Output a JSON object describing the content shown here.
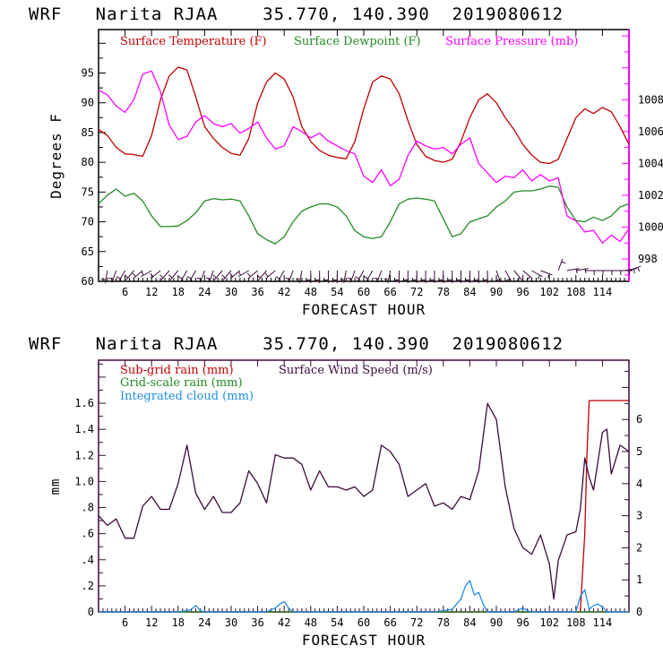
{
  "chart_data": [
    {
      "type": "line",
      "title": "WRF   Narita RJAA    35.770, 140.390  2019080612",
      "xlabel": "FORECAST HOUR",
      "ylabel": "Degrees F",
      "y2label": "",
      "xlim": [
        0,
        120
      ],
      "ylim": [
        60,
        102.3
      ],
      "y2lim": [
        996.6,
        1012.4
      ],
      "x_ticks": [
        6,
        12,
        18,
        24,
        30,
        36,
        42,
        48,
        54,
        60,
        66,
        72,
        78,
        84,
        90,
        96,
        102,
        108,
        114
      ],
      "x_tick_labels": [
        "6",
        "12",
        "18",
        "24",
        "30",
        "36",
        "42",
        "48",
        "54",
        "60",
        "66",
        "72",
        "78",
        "84",
        "90",
        "96",
        "102",
        "108",
        "114"
      ],
      "y_ticks": [
        60,
        65,
        70,
        75,
        80,
        85,
        90,
        95
      ],
      "y_tick_labels": [
        "60",
        "65",
        "70",
        "75",
        "80",
        "85",
        "90",
        "95"
      ],
      "y2_ticks": [
        998,
        1000,
        1002,
        1004,
        1006,
        1008
      ],
      "y2_tick_labels": [
        "998",
        "1000",
        "1002",
        "1004",
        "1006",
        "1008"
      ],
      "grid": false,
      "legend_position": "top-left",
      "series": [
        {
          "name": "Surface Temperature (F)",
          "color": "#c00000",
          "axis": "left",
          "x": [
            0,
            2,
            4,
            6,
            8,
            10,
            12,
            14,
            16,
            18,
            20,
            22,
            24,
            26,
            28,
            30,
            32,
            34,
            36,
            38,
            40,
            42,
            44,
            46,
            48,
            50,
            52,
            54,
            56,
            58,
            60,
            62,
            64,
            66,
            68,
            70,
            72,
            74,
            76,
            78,
            80,
            82,
            84,
            86,
            88,
            90,
            92,
            94,
            96,
            98,
            100,
            102,
            104,
            106,
            108,
            110,
            112,
            114,
            116,
            118,
            120
          ],
          "y": [
            85.5,
            84.5,
            82.5,
            81.4,
            81.3,
            81.0,
            84.5,
            90.5,
            94.5,
            96.0,
            95.5,
            91.0,
            86.0,
            84.0,
            82.5,
            81.5,
            81.2,
            84.0,
            90.0,
            93.5,
            95.0,
            94.0,
            91.0,
            86.0,
            83.5,
            82.0,
            81.2,
            80.8,
            80.6,
            83.5,
            89.0,
            93.5,
            94.5,
            94.0,
            91.5,
            87.0,
            83.0,
            81.0,
            80.3,
            80.0,
            80.5,
            83.5,
            87.5,
            90.5,
            91.5,
            90.0,
            87.5,
            85.5,
            83.0,
            81.2,
            80.0,
            79.8,
            80.5,
            84.0,
            87.5,
            89.0,
            88.2,
            89.2,
            88.5,
            86.0,
            83.0
          ]
        },
        {
          "name": "Surface Dewpoint (F)",
          "color": "#228b22",
          "axis": "left",
          "x": [
            0,
            2,
            4,
            6,
            8,
            10,
            12,
            14,
            16,
            18,
            20,
            22,
            24,
            26,
            28,
            30,
            32,
            34,
            36,
            38,
            40,
            42,
            44,
            46,
            48,
            50,
            52,
            54,
            56,
            58,
            60,
            62,
            64,
            66,
            68,
            70,
            72,
            74,
            76,
            78,
            80,
            82,
            84,
            86,
            88,
            90,
            92,
            94,
            96,
            98,
            100,
            102,
            104,
            106,
            108,
            110,
            112,
            114,
            116,
            118,
            120
          ],
          "y": [
            73.0,
            74.5,
            75.5,
            74.3,
            74.8,
            73.5,
            71.0,
            69.2,
            69.2,
            69.3,
            70.2,
            71.5,
            73.5,
            73.9,
            73.7,
            73.8,
            73.5,
            71.0,
            68.0,
            67.0,
            66.3,
            67.5,
            70.0,
            71.8,
            72.5,
            73.0,
            73.0,
            72.5,
            71.0,
            68.5,
            67.5,
            67.2,
            67.5,
            70.0,
            73.0,
            73.8,
            74.0,
            73.8,
            73.5,
            70.5,
            67.5,
            68.0,
            70.0,
            70.5,
            71.0,
            72.5,
            73.5,
            75.0,
            75.2,
            75.2,
            75.5,
            76.0,
            75.8,
            72.5,
            70.2,
            70.0,
            70.8,
            70.2,
            71.0,
            72.5,
            73.0
          ]
        },
        {
          "name": "Surface Pressure (mb)",
          "color": "#ff00ff",
          "axis": "right",
          "x": [
            0,
            2,
            4,
            6,
            8,
            10,
            12,
            14,
            16,
            18,
            20,
            22,
            24,
            26,
            28,
            30,
            32,
            34,
            36,
            38,
            40,
            42,
            44,
            46,
            48,
            50,
            52,
            54,
            56,
            58,
            60,
            62,
            64,
            66,
            68,
            70,
            72,
            74,
            76,
            78,
            80,
            82,
            84,
            86,
            88,
            90,
            92,
            94,
            96,
            98,
            100,
            102,
            104,
            106,
            108,
            110,
            112,
            114,
            116,
            118,
            120
          ],
          "y": [
            1008.6,
            1008.3,
            1007.6,
            1007.2,
            1008.0,
            1009.6,
            1009.8,
            1008.5,
            1006.4,
            1005.5,
            1005.7,
            1006.6,
            1007.0,
            1006.5,
            1006.3,
            1006.5,
            1005.9,
            1006.2,
            1006.6,
            1005.6,
            1004.9,
            1005.1,
            1006.3,
            1006.0,
            1005.6,
            1005.9,
            1005.4,
            1005.1,
            1004.8,
            1004.6,
            1003.2,
            1002.8,
            1003.6,
            1002.6,
            1003.0,
            1004.5,
            1005.4,
            1005.1,
            1004.9,
            1005.0,
            1004.6,
            1005.2,
            1005.6,
            1004.0,
            1003.4,
            1002.8,
            1003.2,
            1003.1,
            1003.6,
            1002.9,
            1003.3,
            1002.9,
            1003.1,
            1000.7,
            1000.4,
            999.7,
            999.8,
            999.0,
            999.5,
            999.1,
            999.9
          ]
        }
      ],
      "wind_barbs": {
        "color": "#3c0a3c",
        "note": "Wind barbs drawn along the bottom of the temperature panel every ~2 forecast hours",
        "direction_deg": [
          190,
          200,
          210,
          220,
          230,
          240,
          230,
          220,
          220,
          210,
          210,
          200,
          200,
          220,
          220,
          230,
          240,
          230,
          220,
          230,
          210,
          200,
          190,
          180,
          180,
          180,
          180,
          190,
          200,
          210,
          210,
          200,
          190,
          180,
          180,
          180,
          180,
          180,
          180,
          180,
          180,
          180,
          180,
          180,
          160,
          150,
          140,
          130,
          120,
          110,
          20,
          80,
          80,
          90,
          90,
          90,
          90,
          90,
          80,
          70
        ],
        "x": [
          2,
          4,
          6,
          8,
          10,
          12,
          14,
          16,
          18,
          20,
          22,
          24,
          26,
          28,
          30,
          32,
          34,
          36,
          38,
          40,
          42,
          44,
          46,
          48,
          50,
          52,
          54,
          56,
          58,
          60,
          62,
          64,
          66,
          68,
          70,
          72,
          74,
          76,
          78,
          80,
          82,
          84,
          86,
          88,
          90,
          92,
          94,
          96,
          98,
          100,
          104,
          106,
          108,
          110,
          112,
          114,
          116,
          118,
          119,
          120
        ]
      }
    },
    {
      "type": "line",
      "title": "WRF   Narita RJAA    35.770, 140.390  2019080612",
      "xlabel": "FORECAST HOUR",
      "ylabel": "mm",
      "xlim": [
        0,
        120
      ],
      "ylim": [
        0,
        1.93
      ],
      "y2lim": [
        0,
        7.85
      ],
      "x_ticks": [
        6,
        12,
        18,
        24,
        30,
        36,
        42,
        48,
        54,
        60,
        66,
        72,
        78,
        84,
        90,
        96,
        102,
        108,
        114
      ],
      "x_tick_labels": [
        "6",
        "12",
        "18",
        "24",
        "30",
        "36",
        "42",
        "48",
        "54",
        "60",
        "66",
        "72",
        "78",
        "84",
        "90",
        "96",
        "102",
        "108",
        "114"
      ],
      "y_ticks": [
        0,
        0.2,
        0.4,
        0.6,
        0.8,
        1.0,
        1.2,
        1.4,
        1.6
      ],
      "y_tick_labels": [
        "0",
        ".2",
        ".4",
        ".6",
        ".8",
        "1.0",
        "1.2",
        "1.4",
        "1.6"
      ],
      "y2_ticks": [
        0,
        1,
        2,
        3,
        4,
        5,
        6
      ],
      "y2_tick_labels": [
        "0",
        "1",
        "2",
        "3",
        "4",
        "5",
        "6"
      ],
      "grid": false,
      "legend_position": "top-left",
      "series": [
        {
          "name": "Sub-grid rain (mm)",
          "color": "#c00000",
          "axis": "left",
          "x": [
            0,
            108,
            109,
            110,
            110.5,
            111,
            120
          ],
          "y": [
            0,
            0,
            0,
            0.6,
            1.2,
            1.62,
            1.62
          ]
        },
        {
          "name": "Grid-scale rain (mm)",
          "color": "#228b22",
          "axis": "left",
          "x": [
            0,
            120
          ],
          "y": [
            0,
            0
          ]
        },
        {
          "name": "Integrated cloud (mm)",
          "color": "#1e8ce6",
          "axis": "left",
          "x": [
            0,
            18,
            20,
            21,
            22,
            23,
            24,
            38,
            40,
            41,
            42,
            43,
            44,
            76,
            78,
            80,
            82,
            83,
            84,
            85,
            86,
            87,
            88,
            94,
            96,
            97,
            98,
            108,
            109,
            110,
            111,
            112,
            113,
            114,
            115,
            120
          ],
          "y": [
            0,
            0,
            0.01,
            0.02,
            0.05,
            0.01,
            0,
            0,
            0.03,
            0.06,
            0.08,
            0.03,
            0,
            0,
            0.01,
            0.02,
            0.1,
            0.2,
            0.24,
            0.13,
            0.15,
            0.06,
            0,
            0,
            0.03,
            0.01,
            0,
            0,
            0.12,
            0.17,
            0.02,
            0.05,
            0.06,
            0.04,
            0,
            0
          ]
        },
        {
          "name": "Surface Wind Speed (m/s)",
          "color": "#3c0a3c",
          "axis": "right",
          "x": [
            0,
            2,
            4,
            6,
            8,
            10,
            12,
            14,
            16,
            18,
            20,
            22,
            24,
            26,
            28,
            30,
            32,
            34,
            36,
            38,
            40,
            42,
            44,
            46,
            48,
            50,
            52,
            54,
            56,
            58,
            60,
            62,
            64,
            66,
            68,
            70,
            72,
            74,
            76,
            78,
            80,
            82,
            84,
            86,
            88,
            90,
            92,
            94,
            96,
            98,
            100,
            102,
            103,
            104,
            106,
            108,
            109,
            110,
            111,
            112,
            114,
            115,
            116,
            118,
            120
          ],
          "y": [
            3.0,
            2.7,
            2.9,
            2.3,
            2.3,
            3.3,
            3.6,
            3.2,
            3.2,
            4.0,
            5.2,
            3.7,
            3.2,
            3.6,
            3.1,
            3.1,
            3.4,
            4.4,
            4.0,
            3.4,
            4.9,
            4.8,
            4.8,
            4.6,
            3.8,
            4.4,
            3.9,
            3.9,
            3.8,
            3.9,
            3.6,
            3.8,
            5.2,
            5.0,
            4.6,
            3.6,
            3.8,
            4.0,
            3.3,
            3.4,
            3.2,
            3.6,
            3.5,
            4.4,
            6.5,
            6.0,
            3.9,
            2.6,
            2.0,
            1.8,
            2.4,
            1.5,
            0.4,
            1.6,
            2.4,
            2.5,
            3.2,
            4.8,
            4.2,
            3.8,
            5.6,
            5.7,
            4.3,
            5.2,
            5.0
          ]
        }
      ]
    }
  ]
}
